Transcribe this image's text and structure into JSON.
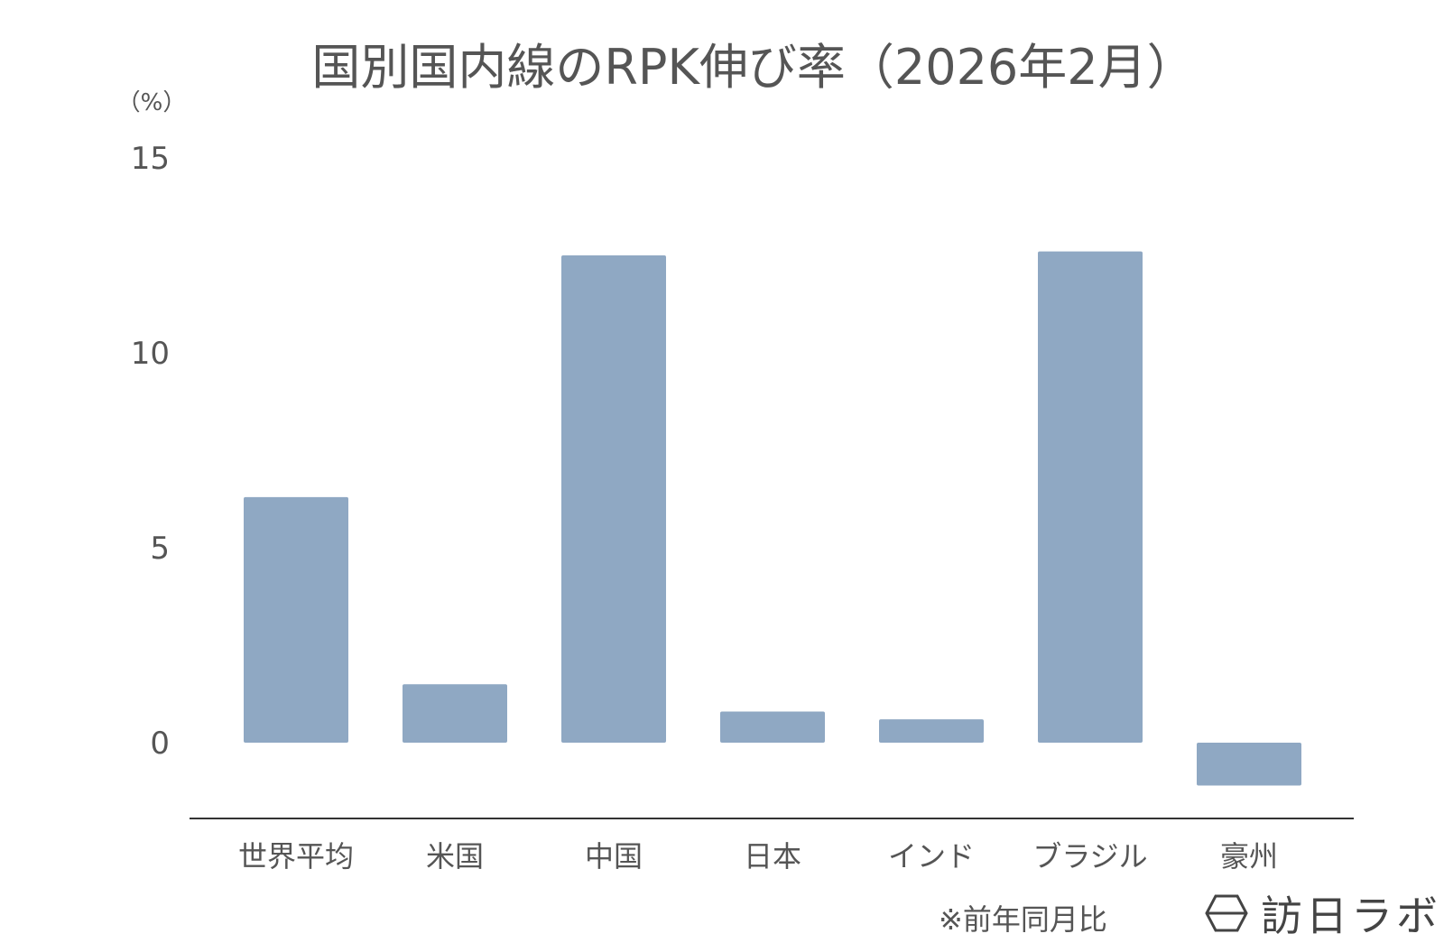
{
  "chart_data": {
    "type": "bar",
    "title": "国別国内線のRPK伸び率（2026年2月）",
    "ylabel": "（%）",
    "categories": [
      "世界平均",
      "米国",
      "中国",
      "日本",
      "インド",
      "ブラジル",
      "豪州"
    ],
    "values": [
      6.3,
      1.5,
      12.5,
      0.8,
      0.6,
      12.6,
      -1.1
    ],
    "yticks": [
      0,
      5,
      10,
      15
    ],
    "ylim": [
      -2,
      15
    ],
    "grid": false,
    "legend": "none",
    "bar_color": "#8fa8c3",
    "footnote": "※前年同月比"
  },
  "logo": {
    "text": "訪日ラボ",
    "icon": "hexagon-logo-icon"
  }
}
